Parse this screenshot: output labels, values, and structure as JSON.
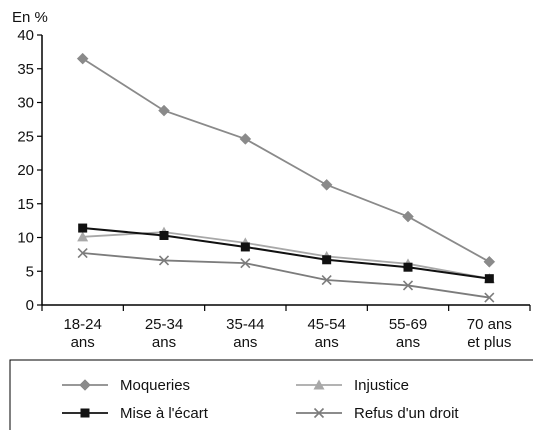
{
  "chart_data": {
    "type": "line",
    "unit_label": "En %",
    "categories": [
      [
        "18-24",
        "ans"
      ],
      [
        "25-34",
        "ans"
      ],
      [
        "35-44",
        "ans"
      ],
      [
        "45-54",
        "ans"
      ],
      [
        "55-69",
        "ans"
      ],
      [
        "70 ans",
        "et plus"
      ]
    ],
    "ylim": [
      0,
      40
    ],
    "yticks": [
      0,
      5,
      10,
      15,
      20,
      25,
      30,
      35,
      40
    ],
    "grid": false,
    "legend_position": "bottom",
    "series": [
      {
        "name": "Moqueries",
        "values": [
          36.5,
          28.8,
          24.6,
          17.8,
          13.1,
          6.4
        ],
        "color": "#8a8a8a",
        "marker": "diamond"
      },
      {
        "name": "Mise à l'écart",
        "values": [
          11.4,
          10.3,
          8.6,
          6.7,
          5.6,
          3.9
        ],
        "color": "#111111",
        "marker": "square"
      },
      {
        "name": "Injustice",
        "values": [
          10.1,
          10.8,
          9.2,
          7.2,
          6.1,
          3.9
        ],
        "color": "#a8a8a8",
        "marker": "triangle"
      },
      {
        "name": "Refus d'un droit",
        "values": [
          7.7,
          6.6,
          6.2,
          3.7,
          2.9,
          1.1
        ],
        "color": "#7c7c7c",
        "marker": "cross"
      }
    ]
  }
}
